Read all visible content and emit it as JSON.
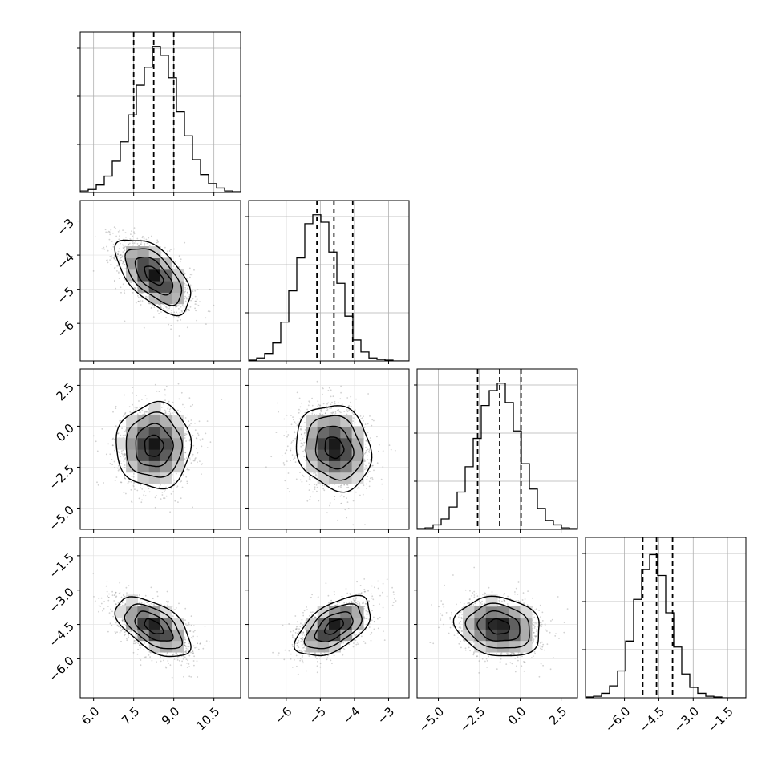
{
  "chart_data": {
    "type": "corner",
    "grid": true,
    "title": "",
    "parameters": [
      "",
      "",
      "",
      ""
    ],
    "ranges": [
      [
        5.5,
        11.5
      ],
      [
        -7.1,
        -2.4
      ],
      [
        -6.3,
        3.5
      ],
      [
        -7.7,
        -0.7
      ]
    ],
    "ticks": [
      {
        "values": [
          6.0,
          7.5,
          9.0,
          10.5
        ],
        "labels": [
          "6.0",
          "7.5",
          "9.0",
          "10.5"
        ]
      },
      {
        "values": [
          -6,
          -5,
          -4,
          -3
        ],
        "labels": [
          "−6",
          "−5",
          "−4",
          "−3"
        ]
      },
      {
        "values": [
          -5.0,
          -2.5,
          0.0,
          2.5
        ],
        "labels": [
          "−5.0",
          "−2.5",
          "0.0",
          "2.5"
        ]
      },
      {
        "values": [
          -6.0,
          -4.5,
          -3.0,
          -1.5
        ],
        "labels": [
          "−6.0",
          "−4.5",
          "−3.0",
          "−1.5"
        ]
      }
    ],
    "quantiles": [
      [
        7.5,
        8.25,
        9.0
      ],
      [
        -5.1,
        -4.6,
        -4.05
      ],
      [
        -2.6,
        -1.25,
        0.05
      ],
      [
        -5.2,
        -4.6,
        -3.9
      ]
    ],
    "histograms": [
      {
        "max": 0.98,
        "counts": [
          0.01,
          0.02,
          0.05,
          0.11,
          0.21,
          0.34,
          0.52,
          0.72,
          0.84,
          0.98,
          0.92,
          0.77,
          0.54,
          0.38,
          0.22,
          0.12,
          0.06,
          0.03,
          0.01,
          0.005
        ]
      },
      {
        "max": 0.98,
        "counts": [
          0.005,
          0.02,
          0.05,
          0.12,
          0.26,
          0.47,
          0.69,
          0.92,
          0.98,
          0.93,
          0.73,
          0.52,
          0.3,
          0.14,
          0.06,
          0.02,
          0.01,
          0.005,
          0.0,
          0.0
        ]
      },
      {
        "max": 0.98,
        "counts": [
          0.005,
          0.01,
          0.03,
          0.07,
          0.15,
          0.25,
          0.42,
          0.61,
          0.83,
          0.93,
          0.98,
          0.85,
          0.66,
          0.44,
          0.27,
          0.14,
          0.06,
          0.03,
          0.01,
          0.005
        ]
      },
      {
        "max": 0.98,
        "counts": [
          0.005,
          0.01,
          0.03,
          0.08,
          0.18,
          0.38,
          0.66,
          0.86,
          0.96,
          0.82,
          0.57,
          0.34,
          0.16,
          0.07,
          0.03,
          0.01,
          0.005,
          0.0,
          0.0,
          0.0
        ]
      }
    ],
    "pairs": [
      {
        "x": 0,
        "y": 1,
        "mean": [
          8.25,
          -4.6
        ],
        "sd": [
          0.7,
          0.55
        ],
        "corr": -0.6
      },
      {
        "x": 0,
        "y": 2,
        "mean": [
          8.25,
          -1.2
        ],
        "sd": [
          0.7,
          1.3
        ],
        "corr": 0.0
      },
      {
        "x": 1,
        "y": 2,
        "mean": [
          -4.6,
          -1.3
        ],
        "sd": [
          0.55,
          1.3
        ],
        "corr": -0.15
      },
      {
        "x": 0,
        "y": 3,
        "mean": [
          8.25,
          -4.6
        ],
        "sd": [
          0.7,
          0.65
        ],
        "corr": -0.55
      },
      {
        "x": 1,
        "y": 3,
        "mean": [
          -4.6,
          -4.6
        ],
        "sd": [
          0.55,
          0.65
        ],
        "corr": 0.55
      },
      {
        "x": 2,
        "y": 3,
        "mean": [
          -1.3,
          -4.6
        ],
        "sd": [
          1.3,
          0.65
        ],
        "corr": -0.15
      }
    ]
  }
}
